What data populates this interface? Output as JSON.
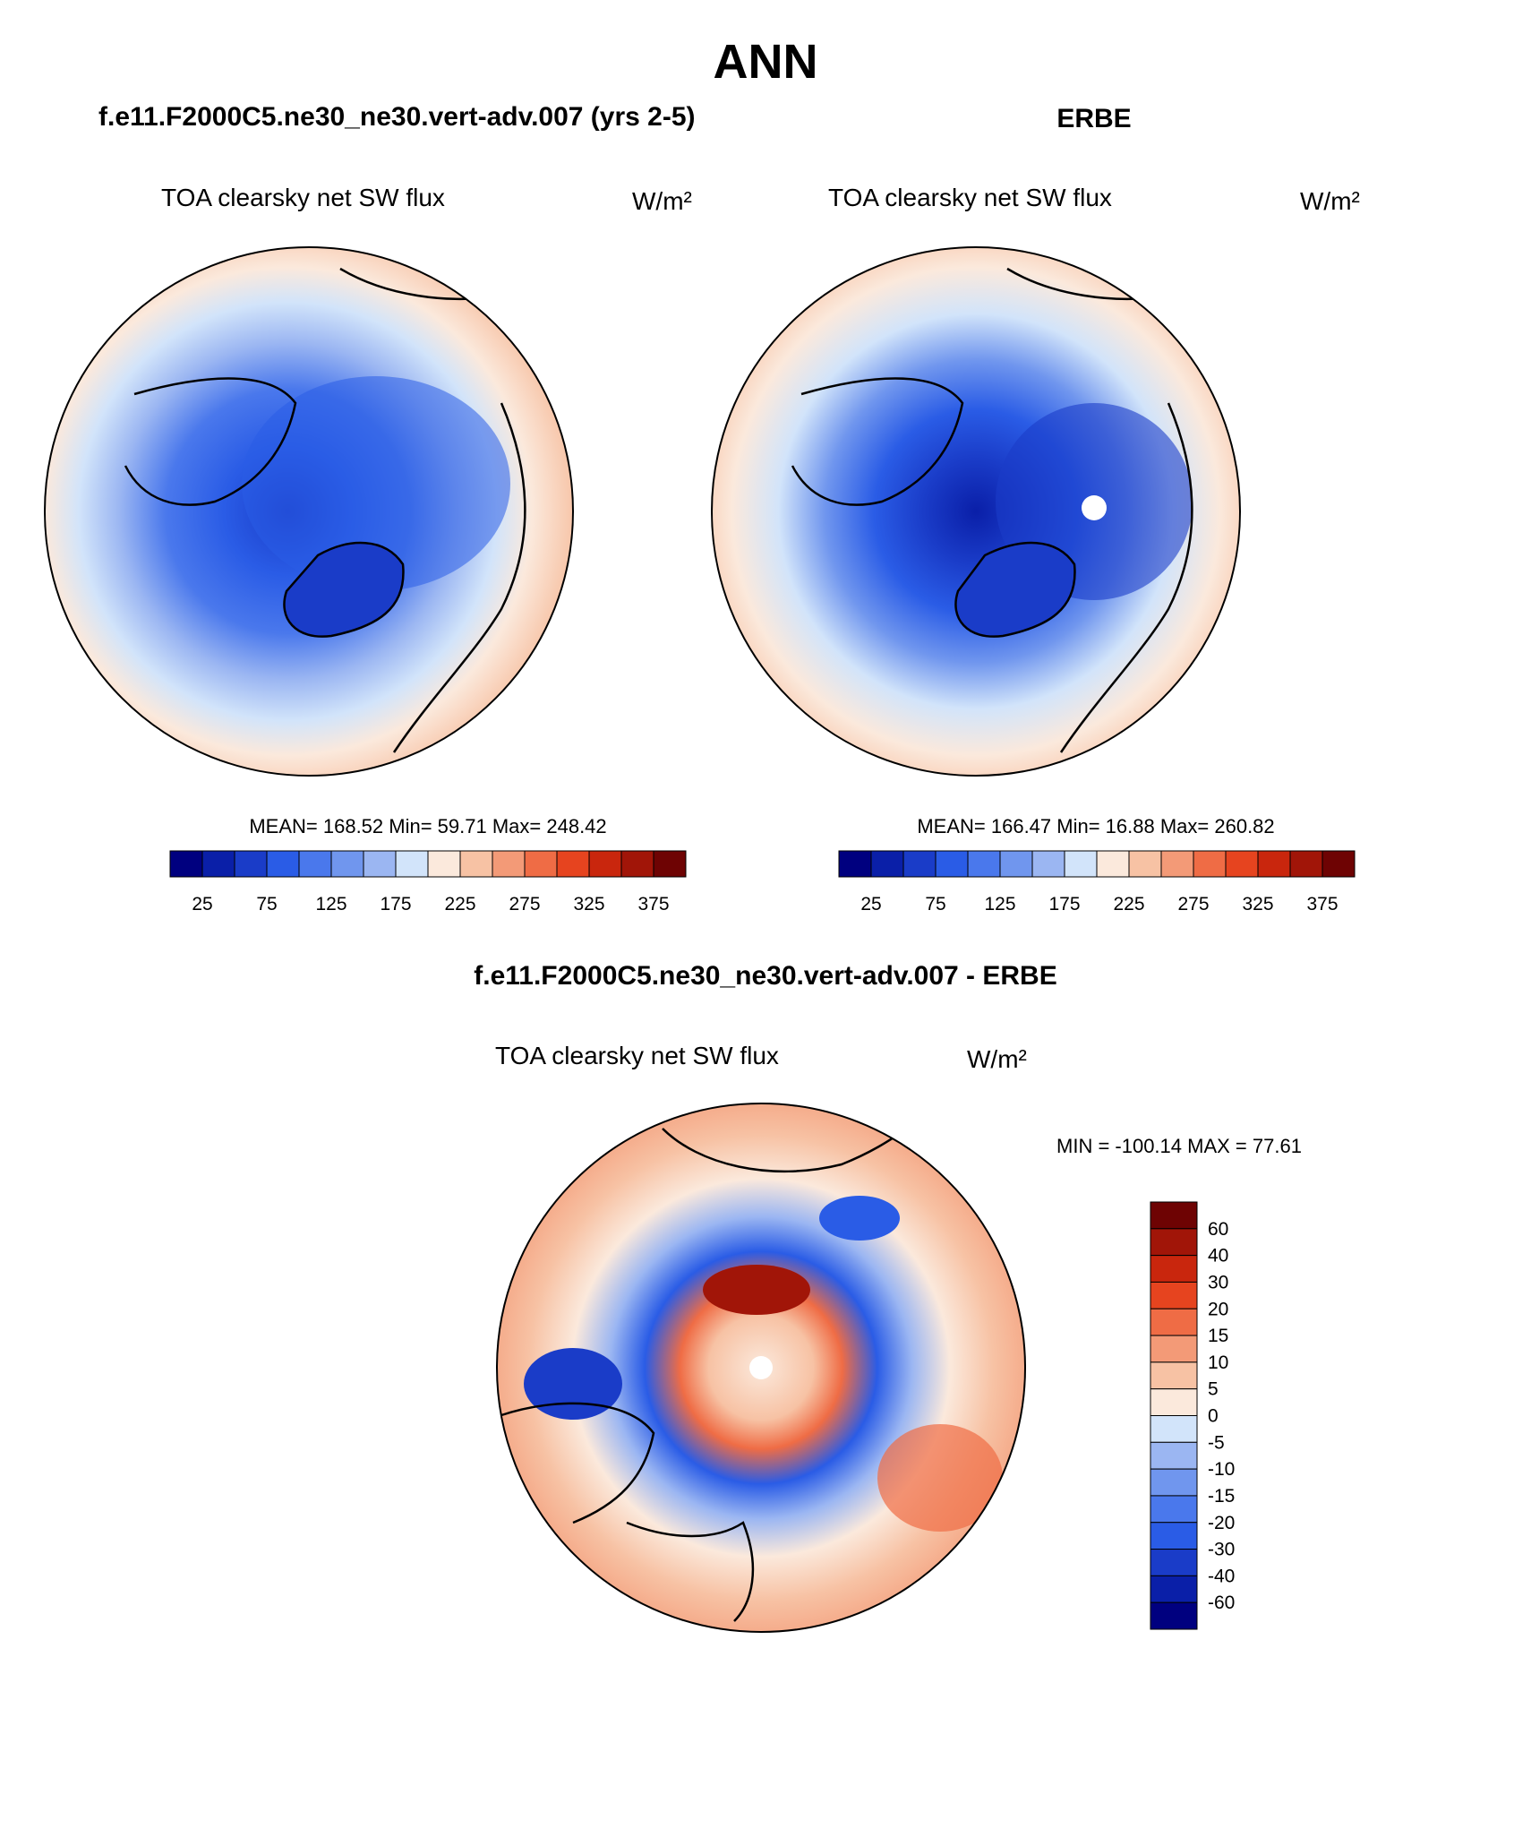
{
  "figure": {
    "title": "ANN",
    "top_left_title": "f.e11.F2000C5.ne30_ne30.vert-adv.007 (yrs 2-5)",
    "top_right_title": "ERBE",
    "bottom_title": "f.e11.F2000C5.ne30_ne30.vert-adv.007 - ERBE"
  },
  "colors": {
    "abs_scale": [
      "#00007f",
      "#0a1fa8",
      "#1a3cc8",
      "#2a5ce6",
      "#4a78ec",
      "#7096ee",
      "#9bb6f2",
      "#d2e4fa",
      "#fbe9dc",
      "#f7c2a4",
      "#f39a77",
      "#ef6c45",
      "#e6441f",
      "#c9260d",
      "#a11508",
      "#6e0303"
    ],
    "diff_scale": [
      "#00007f",
      "#0a1fa8",
      "#1a3cc8",
      "#2a5ce6",
      "#4a78ec",
      "#7096ee",
      "#9bb6f2",
      "#d2e4fa",
      "#fbe9dc",
      "#f7c2a4",
      "#f39a77",
      "#ef6c45",
      "#e6441f",
      "#c9260d",
      "#a11508",
      "#6e0303"
    ],
    "land_outline": "#000000"
  },
  "chart_data": [
    {
      "type": "heatmap",
      "projection": "north-polar-stereographic",
      "title": "TOA clearsky net SW flux",
      "units": "W/m²",
      "stats": "MEAN= 168.52  Min=  59.71  Max= 248.42",
      "mean": 168.52,
      "min": 59.71,
      "max": 248.42,
      "colorbar_ticks": [
        "25",
        "75",
        "125",
        "175",
        "225",
        "275",
        "325",
        "375"
      ],
      "levels": [
        25,
        50,
        75,
        100,
        125,
        150,
        175,
        200,
        225,
        250,
        275,
        300,
        325,
        350,
        375
      ]
    },
    {
      "type": "heatmap",
      "projection": "north-polar-stereographic",
      "title": "TOA clearsky net SW flux",
      "units": "W/m²",
      "stats": "MEAN= 166.47  Min=  16.88  Max= 260.82",
      "mean": 166.47,
      "min": 16.88,
      "max": 260.82,
      "colorbar_ticks": [
        "25",
        "75",
        "125",
        "175",
        "225",
        "275",
        "325",
        "375"
      ],
      "levels": [
        25,
        50,
        75,
        100,
        125,
        150,
        175,
        200,
        225,
        250,
        275,
        300,
        325,
        350,
        375
      ]
    },
    {
      "type": "heatmap",
      "projection": "north-polar-stereographic",
      "title": "TOA clearsky net SW flux",
      "units": "W/m²",
      "stats": "MIN = -100.14 MAX =  77.61",
      "min": -100.14,
      "max": 77.61,
      "colorbar_ticks": [
        "60",
        "40",
        "30",
        "20",
        "15",
        "10",
        "5",
        "0",
        "-5",
        "-10",
        "-15",
        "-20",
        "-30",
        "-40",
        "-60"
      ],
      "levels": [
        -60,
        -40,
        -30,
        -20,
        -15,
        -10,
        -5,
        0,
        5,
        10,
        15,
        20,
        30,
        40,
        60
      ]
    }
  ]
}
